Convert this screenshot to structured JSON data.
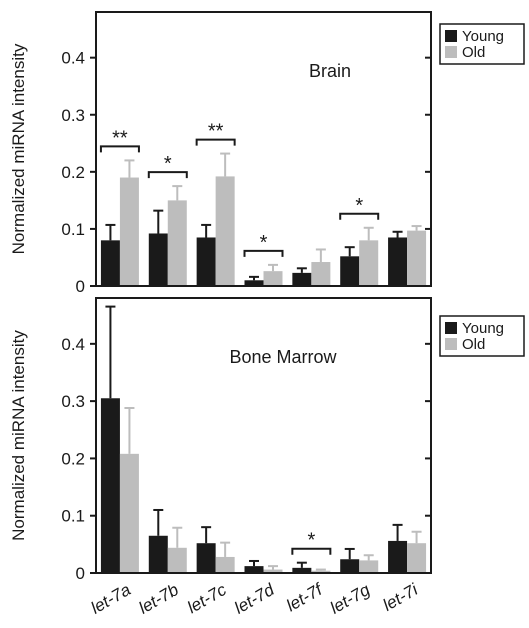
{
  "chart_data": [
    {
      "type": "bar",
      "annotation": "Brain",
      "ylabel": "Normalized miRNA intensity",
      "ylim": [
        0,
        0.48
      ],
      "yticks": [
        "0",
        "0.1",
        "0.2",
        "0.3",
        "0.4"
      ],
      "categories": [
        "let-7a",
        "let-7b",
        "let-7c",
        "let-7d",
        "let-7f",
        "let-7g",
        "let-7i"
      ],
      "series": [
        {
          "name": "Young",
          "color": "#1a1a1a",
          "values": [
            0.08,
            0.092,
            0.085,
            0.01,
            0.023,
            0.052,
            0.085
          ],
          "errors": [
            0.027,
            0.04,
            0.022,
            0.006,
            0.008,
            0.016,
            0.01
          ]
        },
        {
          "name": "Old",
          "color": "#bdbdbd",
          "values": [
            0.19,
            0.15,
            0.192,
            0.026,
            0.042,
            0.08,
            0.097
          ],
          "errors": [
            0.03,
            0.025,
            0.04,
            0.011,
            0.022,
            0.022,
            0.008
          ]
        }
      ],
      "significance": [
        {
          "category": "let-7a",
          "label": "**"
        },
        {
          "category": "let-7b",
          "label": "*"
        },
        {
          "category": "let-7c",
          "label": "**"
        },
        {
          "category": "let-7d",
          "label": "*"
        },
        {
          "category": "let-7g",
          "label": "*"
        }
      ],
      "legend": "right"
    },
    {
      "type": "bar",
      "annotation": "Bone Marrow",
      "ylabel": "Normalized miRNA intensity",
      "ylim": [
        0,
        0.48
      ],
      "yticks": [
        "0",
        "0.1",
        "0.2",
        "0.3",
        "0.4"
      ],
      "categories": [
        "let-7a",
        "let-7b",
        "let-7c",
        "let-7d",
        "let-7f",
        "let-7g",
        "let-7i"
      ],
      "series": [
        {
          "name": "Young",
          "color": "#1a1a1a",
          "values": [
            0.305,
            0.065,
            0.052,
            0.012,
            0.009,
            0.024,
            0.056
          ],
          "errors": [
            0.16,
            0.045,
            0.028,
            0.009,
            0.009,
            0.018,
            0.028
          ]
        },
        {
          "name": "Old",
          "color": "#bdbdbd",
          "values": [
            0.208,
            0.044,
            0.028,
            0.006,
            0.004,
            0.022,
            0.052
          ],
          "errors": [
            0.08,
            0.035,
            0.025,
            0.006,
            0.002,
            0.009,
            0.02
          ]
        }
      ],
      "significance": [
        {
          "category": "let-7f",
          "label": "*"
        }
      ],
      "legend": "right"
    }
  ]
}
